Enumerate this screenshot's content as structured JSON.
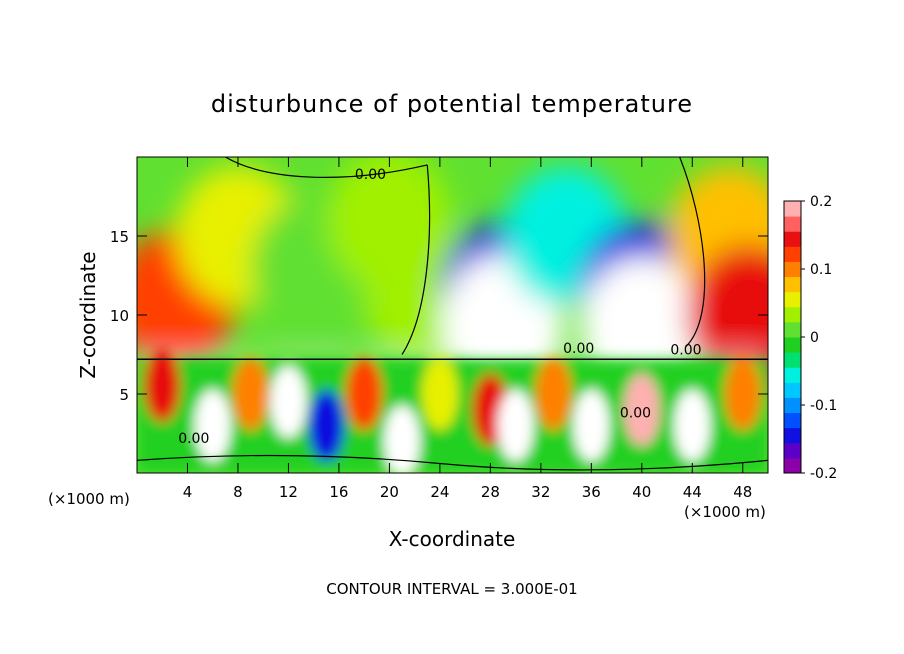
{
  "chart_data": {
    "type": "heatmap",
    "title": "disturbunce of potential temperature",
    "xlabel": "X-coordinate",
    "ylabel": "Z-coordinate",
    "x_unit_label": "(×1000 m)",
    "x_unit_label_right": "(×1000 m)",
    "xlim": [
      0,
      50
    ],
    "ylim": [
      0,
      20
    ],
    "x_ticks": [
      "4",
      "8",
      "12",
      "16",
      "20",
      "24",
      "28",
      "32",
      "36",
      "40",
      "44",
      "48"
    ],
    "y_ticks": [
      "5",
      "10",
      "15"
    ],
    "colorbar": {
      "min": -0.2,
      "max": 0.2,
      "tick_labels": [
        "0.2",
        "0.1",
        "0",
        "-0.1",
        "-0.2"
      ],
      "colors": [
        "#8b00a8",
        "#5a00c8",
        "#1010e0",
        "#0050ff",
        "#0090ff",
        "#00c8ff",
        "#00f0e0",
        "#00e070",
        "#20d020",
        "#60e030",
        "#a0f000",
        "#e8f000",
        "#ffc000",
        "#ff8000",
        "#ff4000",
        "#e81010",
        "#ff6060",
        "#ffb0b0"
      ]
    },
    "contour_labels": [
      "0.00",
      "0.00",
      "0.00",
      "0.00",
      "0.00"
    ],
    "footer": "CONTOUR INTERVAL = 3.000E-01",
    "upper_layer_blobs": [
      {
        "x": 3,
        "z": 11,
        "value": 0.12
      },
      {
        "x": 8,
        "z": 15,
        "value": 0.06
      },
      {
        "x": 14,
        "z": 13,
        "value": 0.02
      },
      {
        "x": 20,
        "z": 16,
        "value": 0.03
      },
      {
        "x": 23,
        "z": 11,
        "value": 0.04
      },
      {
        "x": 29,
        "z": 11.5,
        "value": -0.15
      },
      {
        "x": 29,
        "z": 9.5,
        "value": -0.25
      },
      {
        "x": 34,
        "z": 15,
        "value": -0.05
      },
      {
        "x": 40,
        "z": 11.5,
        "value": -0.15
      },
      {
        "x": 40,
        "z": 9.3,
        "value": -0.25
      },
      {
        "x": 47,
        "z": 15,
        "value": 0.08
      },
      {
        "x": 48.5,
        "z": 10,
        "value": 0.15
      }
    ],
    "lower_layer_blobs": [
      {
        "x": 2,
        "z": 5.5,
        "value": 0.15
      },
      {
        "x": 6,
        "z": 3,
        "value": -0.25
      },
      {
        "x": 9,
        "z": 5,
        "value": 0.1
      },
      {
        "x": 12,
        "z": 4.5,
        "value": -0.25
      },
      {
        "x": 15,
        "z": 3,
        "value": -0.15
      },
      {
        "x": 18,
        "z": 5,
        "value": 0.12
      },
      {
        "x": 21,
        "z": 2,
        "value": -0.25
      },
      {
        "x": 24,
        "z": 5,
        "value": 0.05
      },
      {
        "x": 28,
        "z": 4,
        "value": 0.15
      },
      {
        "x": 30,
        "z": 3,
        "value": -0.25
      },
      {
        "x": 33,
        "z": 5,
        "value": 0.1
      },
      {
        "x": 36,
        "z": 3,
        "value": -0.25
      },
      {
        "x": 40,
        "z": 4,
        "value": 0.18
      },
      {
        "x": 44,
        "z": 3,
        "value": -0.25
      },
      {
        "x": 48,
        "z": 5,
        "value": 0.1
      }
    ]
  }
}
